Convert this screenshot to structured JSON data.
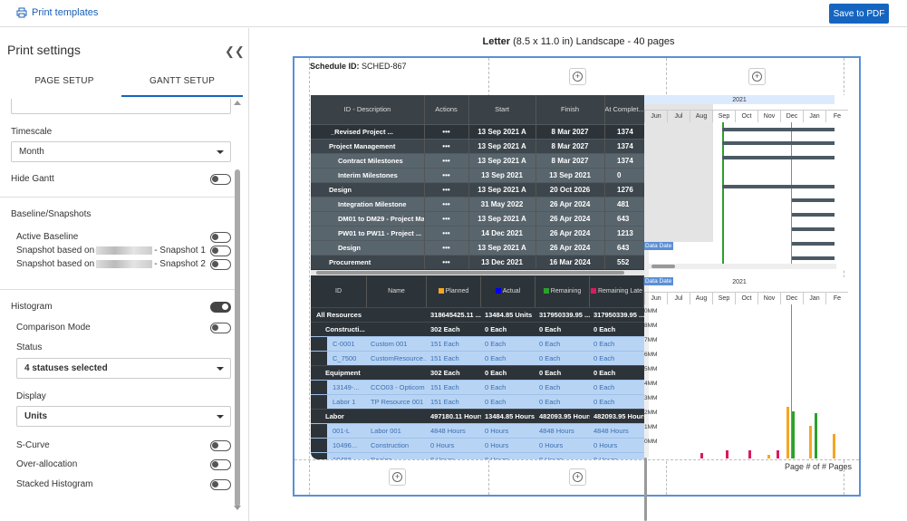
{
  "toolbar": {
    "print_templates": "Print templates",
    "save_pdf": "Save to PDF"
  },
  "panel": {
    "title": "Print settings",
    "tabs": [
      "PAGE SETUP",
      "GANTT SETUP"
    ],
    "timescale_label": "Timescale",
    "timescale_value": "Month",
    "hide_gantt": "Hide Gantt",
    "baseline_header": "Baseline/Snapshots",
    "active_baseline": "Active Baseline",
    "snapshot1_pre": "Snapshot based on",
    "snapshot1_post": "- Snapshot 1",
    "snapshot2_pre": "Snapshot based on",
    "snapshot2_post": "- Snapshot 2",
    "histogram": "Histogram",
    "comparison_mode": "Comparison Mode",
    "status_label": "Status",
    "status_value": "4 statuses selected",
    "display_label": "Display",
    "display_value": "Units",
    "s_curve": "S-Curve",
    "over_allocation": "Over-allocation",
    "stacked_histogram": "Stacked Histogram"
  },
  "preview": {
    "paper": "Letter",
    "size": "(8.5 x 11.0 in) Landscape - 40 pages",
    "schedule_label": "Schedule ID:",
    "schedule_id": "SCHED-867",
    "page_footer": "Page # of # Pages",
    "year": "2021",
    "months": [
      "Jun",
      "Jul",
      "Aug",
      "Sep",
      "Oct",
      "Nov",
      "Dec",
      "Jan",
      "Fe"
    ],
    "data_date": "Data Date",
    "headers": [
      "ID - Description",
      "Actions",
      "Start",
      "Finish",
      "At Complet..."
    ],
    "rows": [
      {
        "desc": "_Revised Project ...",
        "act": "•••",
        "start": "13 Sep 2021 A",
        "finish": "8 Mar 2027",
        "ac": "1374",
        "lvl": 0
      },
      {
        "desc": "Project Management",
        "act": "•••",
        "start": "13 Sep 2021 A",
        "finish": "8 Mar 2027",
        "ac": "1374",
        "lvl": 1
      },
      {
        "desc": "Contract Milestones",
        "act": "•••",
        "start": "13 Sep 2021 A",
        "finish": "8 Mar 2027",
        "ac": "1374",
        "lvl": 2
      },
      {
        "desc": "Interim Milestones",
        "act": "•••",
        "start": "13 Sep 2021",
        "finish": "13 Sep 2021",
        "ac": "0",
        "lvl": 2
      },
      {
        "desc": "Design",
        "act": "•••",
        "start": "13 Sep 2021 A",
        "finish": "20 Oct 2026",
        "ac": "1276",
        "lvl": 1
      },
      {
        "desc": "Integration Milestone",
        "act": "•••",
        "start": "31 May 2022",
        "finish": "26 Apr 2024",
        "ac": "481",
        "lvl": 2
      },
      {
        "desc": "DM01 to DM29 - Project Ma...",
        "act": "•••",
        "start": "13 Sep 2021 A",
        "finish": "26 Apr 2024",
        "ac": "643",
        "lvl": 2
      },
      {
        "desc": "PW01 to PW11 - Project ...",
        "act": "•••",
        "start": "14 Dec 2021",
        "finish": "26 Apr 2024",
        "ac": "1213",
        "lvl": 2
      },
      {
        "desc": "Design",
        "act": "•••",
        "start": "13 Sep 2021 A",
        "finish": "26 Apr 2024",
        "ac": "643",
        "lvl": 2
      },
      {
        "desc": "Procurement",
        "act": "•••",
        "start": "13 Dec 2021",
        "finish": "16 Mar 2024",
        "ac": "552",
        "lvl": 1
      }
    ],
    "res_headers": [
      "ID",
      "Name",
      "Planned",
      "Actual",
      "Remaining",
      "Remaining Late"
    ],
    "legend_colors": [
      "#f5a623",
      "#0000ee",
      "#2ca02c",
      "#d81b60"
    ],
    "res_rows": [
      {
        "id": "All Resources",
        "name": "",
        "planned": "318645425.11 ...",
        "actual": "13484.85 Units",
        "rem": "317950339.95 ...",
        "late": "317950339.95 ...",
        "type": "group"
      },
      {
        "id": "Constructi...",
        "name": "",
        "planned": "302 Each",
        "actual": "0 Each",
        "rem": "0 Each",
        "late": "0 Each",
        "type": "group"
      },
      {
        "id": "C-0001",
        "name": "Custom 001",
        "planned": "151 Each",
        "actual": "0 Each",
        "rem": "0 Each",
        "late": "0 Each",
        "type": "item"
      },
      {
        "id": "C_7500",
        "name": "CustomResource...",
        "planned": "151 Each",
        "actual": "0 Each",
        "rem": "0 Each",
        "late": "0 Each",
        "type": "item"
      },
      {
        "id": "Equipment",
        "name": "",
        "planned": "302 Each",
        "actual": "0 Each",
        "rem": "0 Each",
        "late": "0 Each",
        "type": "group"
      },
      {
        "id": "13149-...",
        "name": "CCO03 - Opticom I",
        "planned": "151 Each",
        "actual": "0 Each",
        "rem": "0 Each",
        "late": "0 Each",
        "type": "item"
      },
      {
        "id": "Labor 1",
        "name": "TP Resource 001",
        "planned": "151 Each",
        "actual": "0 Each",
        "rem": "0 Each",
        "late": "0 Each",
        "type": "item"
      },
      {
        "id": "Labor",
        "name": "",
        "planned": "497180.11 Hours",
        "actual": "13484.85 Hours",
        "rem": "482093.95 Hours",
        "late": "482093.95 Hours",
        "type": "group"
      },
      {
        "id": "001-L",
        "name": "Labor 001",
        "planned": "4848 Hours",
        "actual": "0 Hours",
        "rem": "4848 Hours",
        "late": "4848 Hours",
        "type": "item"
      },
      {
        "id": "10496...",
        "name": "Construction",
        "planned": "0 Hours",
        "actual": "0 Hours",
        "rem": "0 Hours",
        "late": "0 Hours",
        "type": "item"
      },
      {
        "id": "10496...",
        "name": "Design",
        "planned": "0 Hours",
        "actual": "0 Hours",
        "rem": "0 Hours",
        "late": "0 Hours",
        "type": "item"
      }
    ],
    "hist_ticks": [
      "0MM",
      "8MM",
      "7MM",
      "6MM",
      "5MM",
      "4MM",
      "3MM",
      "2MM",
      "1MM",
      "0MM"
    ]
  }
}
